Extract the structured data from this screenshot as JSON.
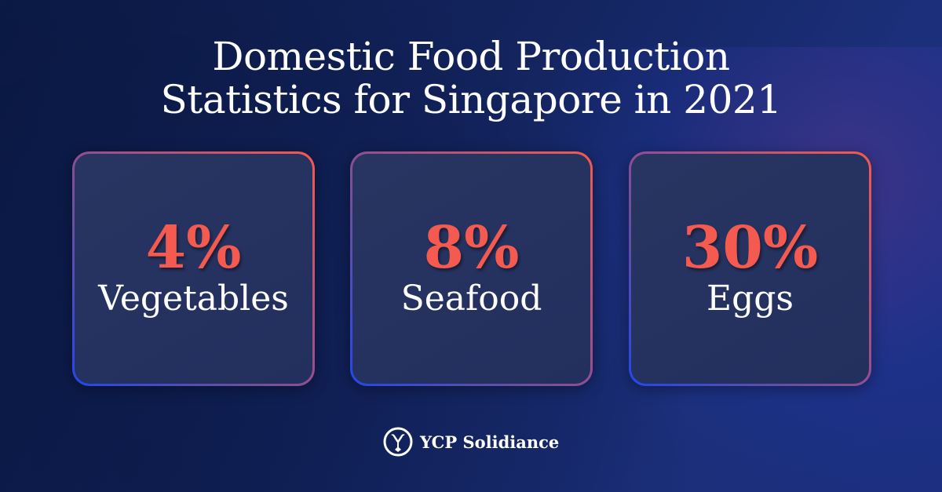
{
  "title": {
    "line1": "Domestic Food Production",
    "line2": "Statistics for Singapore in 2021"
  },
  "stats": [
    {
      "value": "4%",
      "label": "Vegetables"
    },
    {
      "value": "8%",
      "label": "Seafood"
    },
    {
      "value": "30%",
      "label": "Eggs"
    }
  ],
  "brand": {
    "name": "YCP Solidiance",
    "icon": "ycp-logo-icon"
  },
  "colors": {
    "accent": "#f45a50",
    "text": "#ffffff",
    "background": "#13245e"
  }
}
